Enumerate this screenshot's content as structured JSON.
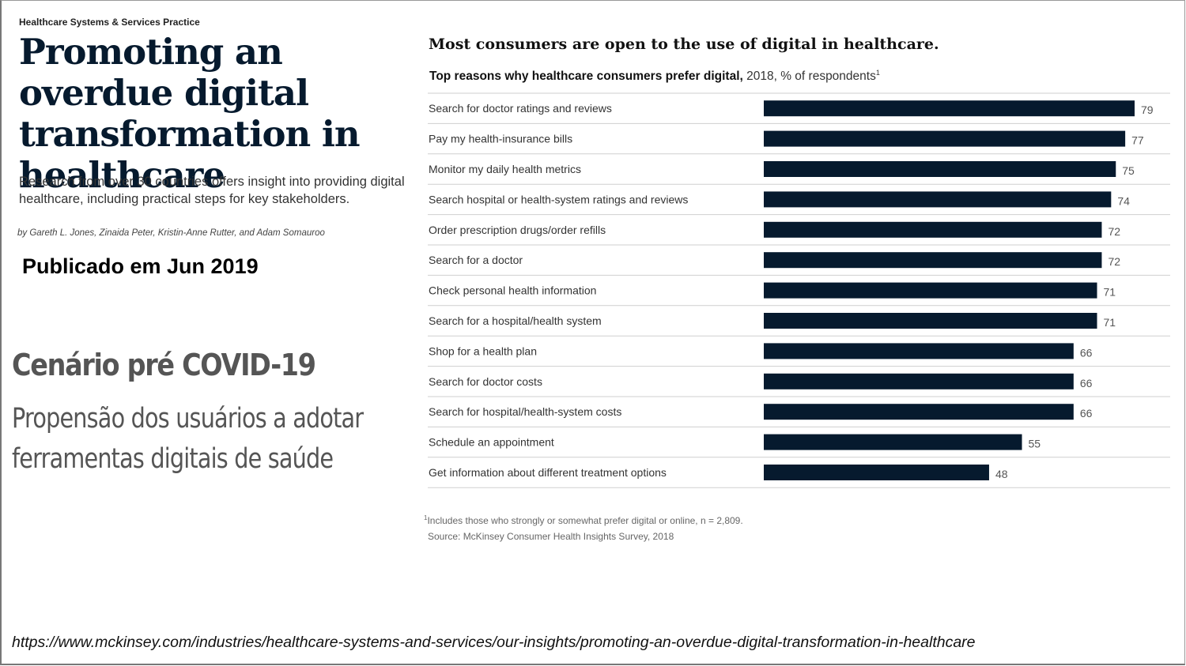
{
  "article": {
    "kicker": "Healthcare Systems & Services Practice",
    "title": "Promoting an overdue digital transformation in healthcare",
    "dek": "Research from over 30 countries offers insight into providing digital healthcare, including practical steps for key stakeholders.",
    "byline": "by Gareth L. Jones, Zinaida Peter, Kristin-Anne Rutter, and Adam Somauroo"
  },
  "slide": {
    "published": "Publicado em Jun 2019",
    "scenario_title": "Cenário pré COVID-19",
    "scenario_text": "Propensão dos usuários a adotar ferramentas digitais de saúde",
    "url": "https://www.mckinsey.com/industries/healthcare-systems-and-services/our-insights/promoting-an-overdue-digital-transformation-in-healthcare"
  },
  "chart_data": {
    "type": "bar",
    "orientation": "horizontal",
    "title": "Most consumers are open to the use of digital in healthcare.",
    "subtitle_bold": "Top reasons why healthcare consumers prefer digital,",
    "subtitle_rest": " 2018, % of respondents",
    "subtitle_marker": "1",
    "categories": [
      "Search for doctor ratings and reviews",
      "Pay my health-insurance bills",
      "Monitor my daily health metrics",
      "Search hospital or health-system ratings and reviews",
      "Order prescription drugs/order refills",
      "Search for a doctor",
      "Check personal health information",
      "Search for a hospital/health system",
      "Shop for a health plan",
      "Search for doctor costs",
      "Search for hospital/health-system costs",
      "Schedule an appointment",
      "Get information about different treatment options"
    ],
    "values": [
      79,
      77,
      75,
      74,
      72,
      72,
      71,
      71,
      66,
      66,
      66,
      55,
      48
    ],
    "xlim": [
      0,
      79
    ],
    "bar_color": "#061a2e",
    "footnote_marker": "1",
    "footnote": "Includes those who strongly or somewhat prefer digital or online, n = 2,809.",
    "source": "Source: McKinsey Consumer Health Insights Survey, 2018"
  }
}
